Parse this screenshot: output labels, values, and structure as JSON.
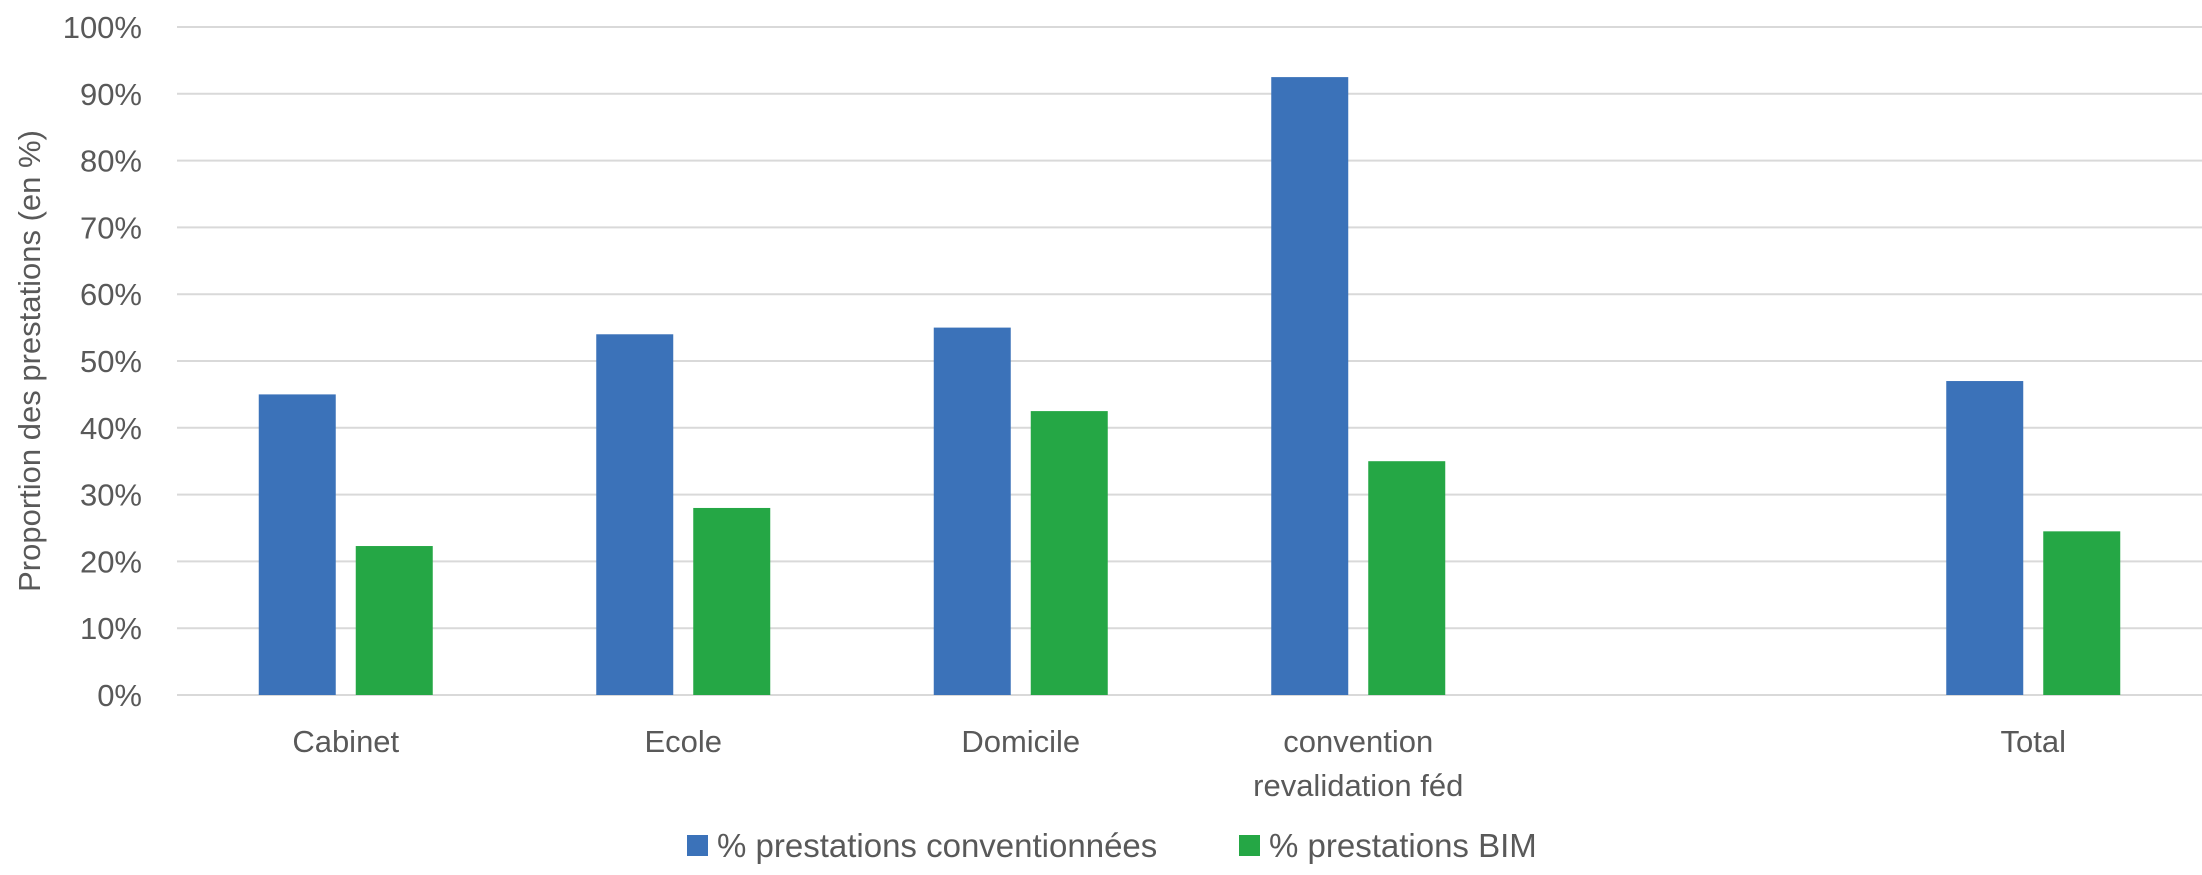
{
  "chart_data": {
    "type": "bar",
    "categories": [
      "Cabinet",
      "Ecole",
      "Domicile",
      "convention revalidation féd",
      "",
      "Total"
    ],
    "category_lines": [
      [
        "Cabinet"
      ],
      [
        "Ecole"
      ],
      [
        "Domicile"
      ],
      [
        "convention",
        "revalidation féd"
      ],
      [],
      [
        "Total"
      ]
    ],
    "series": [
      {
        "name": "% prestations conventionnées",
        "color": "#3b72b9",
        "values": [
          45,
          54,
          55,
          92.5,
          null,
          47
        ]
      },
      {
        "name": "% prestations BIM",
        "color": "#25a745",
        "values": [
          22.3,
          28,
          42.5,
          35,
          null,
          24.5
        ]
      }
    ],
    "ylabel": "Proportion des prestations (en %)",
    "ylim": [
      0,
      100
    ],
    "yticks": [
      "0%",
      "10%",
      "20%",
      "30%",
      "40%",
      "50%",
      "60%",
      "70%",
      "80%",
      "90%",
      "100%"
    ],
    "grid": true,
    "legend_position": "bottom"
  }
}
